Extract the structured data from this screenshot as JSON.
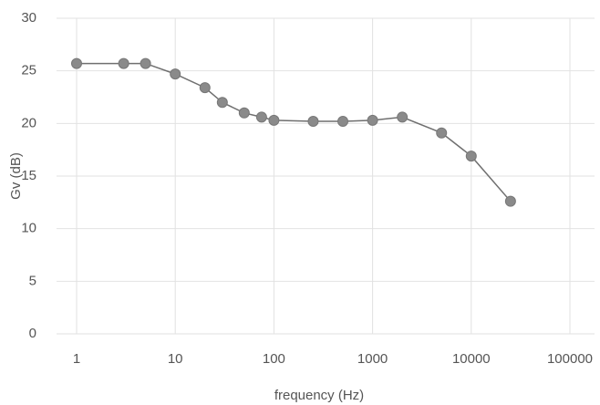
{
  "chart_data": {
    "type": "line",
    "x_label": "frequency (Hz)",
    "y_label": "Gv (dB)",
    "x": [
      1,
      3,
      5,
      10,
      20,
      30,
      50,
      75,
      100,
      250,
      500,
      1000,
      2000,
      5000,
      10000,
      25000
    ],
    "series": [
      {
        "name": "Gv",
        "color": "#8a8a8a",
        "values": [
          25.7,
          25.7,
          25.7,
          24.7,
          23.4,
          22,
          21,
          20.6,
          20.3,
          20.2,
          20.2,
          20.3,
          20.6,
          19.1,
          16.9,
          12.6
        ]
      }
    ],
    "xscale": "log",
    "xlim": [
      1,
      100000
    ],
    "xticks": [
      1,
      10,
      100,
      1000,
      10000,
      100000
    ],
    "ylim": [
      0,
      30
    ],
    "yticks": [
      0,
      5,
      10,
      15,
      20,
      25,
      30
    ],
    "grid": true
  }
}
